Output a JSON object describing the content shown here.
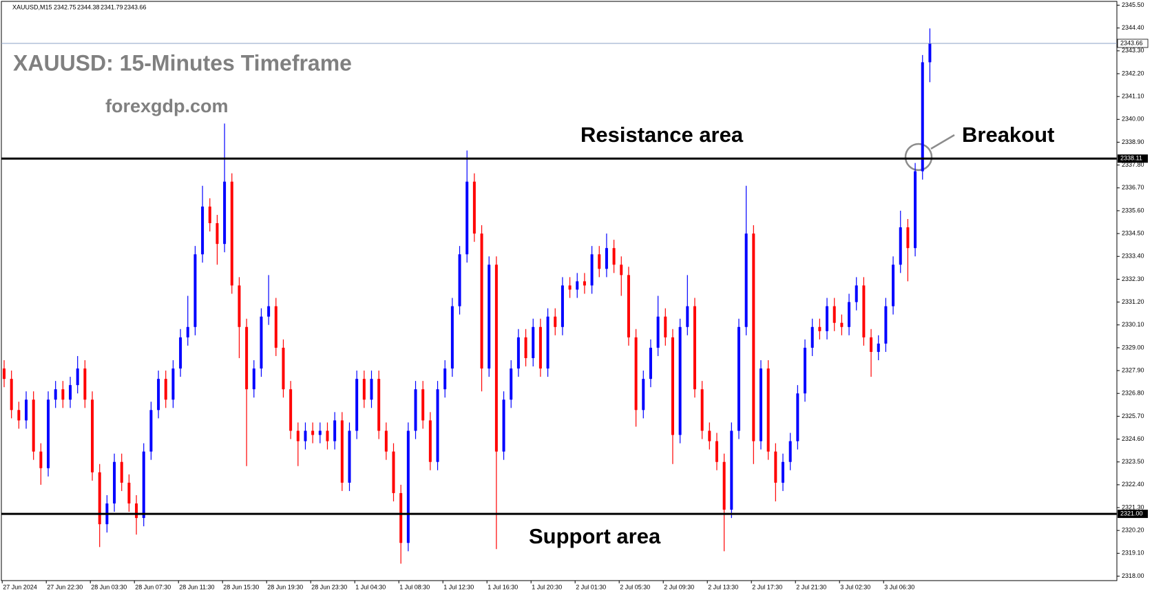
{
  "chart_data": {
    "type": "candlestick",
    "header": "XAUUSD,M15",
    "title": "XAUUSD: 15-Minutes Timeframe",
    "subtitle": "forexgdp.com",
    "annotations": {
      "resistance": "Resistance area",
      "breakout": "Breakout",
      "support": "Support area"
    },
    "x_tick_labels": [
      "27 Jun 2024",
      "27 Jun 22:30",
      "28 Jun 03:30",
      "28 Jun 07:30",
      "28 Jun 11:30",
      "28 Jun 15:30",
      "28 Jun 19:30",
      "28 Jun 23:30",
      "1 Jul 04:30",
      "1 Jul 08:30",
      "1 Jul 12:30",
      "1 Jul 16:30",
      "1 Jul 20:30",
      "2 Jul 01:30",
      "2 Jul 05:30",
      "2 Jul 09:30",
      "2 Jul 13:30",
      "2 Jul 17:30",
      "2 Jul 21:30",
      "3 Jul 02:30",
      "3 Jul 06:30"
    ],
    "open": [
      2328,
      2327.5,
      2326,
      2325.5,
      2326.5,
      2324,
      2323.2,
      2326.5,
      2327,
      2326.5,
      2327.2,
      2328,
      2326.5,
      2323,
      2320.5,
      2321.5,
      2323.5,
      2322.5,
      2321.5,
      2320.8,
      2324,
      2326,
      2327.5,
      2326.5,
      2328,
      2329.5,
      2330,
      2333.5,
      2335.8,
      2335,
      2334,
      2337,
      2332,
      2330,
      2327,
      2328,
      2330.5,
      2331,
      2329,
      2327,
      2325,
      2324.5,
      2325,
      2324.8,
      2325,
      2324.5,
      2325.5,
      2322.5,
      2325,
      2327.5,
      2326.5,
      2327.5,
      2325,
      2324,
      2322,
      2319.6,
      2325,
      2327,
      2325.5,
      2323.5,
      2327,
      2328,
      2331,
      2333.5,
      2337,
      2334.5,
      2328,
      2333,
      2324,
      2326.5,
      2328,
      2329.5,
      2328.5,
      2330,
      2328,
      2330.5,
      2330,
      2332,
      2331.8,
      2332.2,
      2332,
      2333.5,
      2332.8,
      2333.8,
      2333,
      2332.5,
      2329.5,
      2326,
      2327.5,
      2329,
      2330.5,
      2329.5,
      2324.8,
      2330,
      2331,
      2327,
      2325,
      2324.5,
      2323.5,
      2321.2,
      2325,
      2330,
      2334.5,
      2324.5,
      2328,
      2324,
      2322.5,
      2323.5,
      2324.5,
      2326.8,
      2329,
      2330,
      2329.8,
      2331,
      2330.2,
      2330,
      2331.2,
      2332,
      2329.5,
      2328.8,
      2329.2,
      2331,
      2333,
      2334.8,
      2333.8,
      2337.5,
      2342.75
    ],
    "high": [
      2328.4,
      2327.9,
      2326.4,
      2326.9,
      2326.9,
      2324.4,
      2326.9,
      2327.4,
      2327.4,
      2327.6,
      2328.6,
      2328.4,
      2326.9,
      2323.4,
      2321.9,
      2323.9,
      2323.9,
      2322.9,
      2321.9,
      2324.4,
      2326.4,
      2327.9,
      2327.9,
      2328.4,
      2329.9,
      2331.5,
      2333.9,
      2336.8,
      2336.2,
      2335.4,
      2339.8,
      2337.4,
      2332.4,
      2330.4,
      2328.4,
      2330.9,
      2332.5,
      2331.4,
      2329.4,
      2327.4,
      2325.4,
      2325.4,
      2325.4,
      2325.4,
      2325.4,
      2325.9,
      2325.9,
      2325.4,
      2327.9,
      2327.9,
      2327.9,
      2327.9,
      2325.4,
      2324.4,
      2322.4,
      2325.4,
      2327.4,
      2327.4,
      2325.9,
      2327.4,
      2328.4,
      2331.4,
      2333.9,
      2338.5,
      2337.4,
      2334.9,
      2333.4,
      2333.4,
      2326.9,
      2328.4,
      2329.9,
      2329.9,
      2330.4,
      2330.4,
      2330.9,
      2330.9,
      2332.4,
      2332.4,
      2332.6,
      2332.6,
      2333.9,
      2333.9,
      2334.5,
      2334.2,
      2333.4,
      2332.9,
      2329.9,
      2327.9,
      2329.4,
      2331.5,
      2330.9,
      2329.9,
      2330.4,
      2332.5,
      2331.4,
      2327.4,
      2325.4,
      2324.9,
      2323.9,
      2325.4,
      2330.4,
      2336.8,
      2334.9,
      2328.4,
      2328.4,
      2324.4,
      2323.9,
      2324.9,
      2327.2,
      2329.4,
      2330.4,
      2330.4,
      2331.4,
      2331.4,
      2330.6,
      2331.6,
      2332.4,
      2332.4,
      2329.9,
      2329.6,
      2331.4,
      2333.4,
      2335.6,
      2335.2,
      2337.9,
      2343.1,
      2344.38
    ],
    "low": [
      2327.1,
      2325.6,
      2325.1,
      2325.1,
      2323.6,
      2322.4,
      2322.8,
      2326.1,
      2326.1,
      2326.1,
      2326.8,
      2326.1,
      2322.6,
      2319.4,
      2320.1,
      2321.1,
      2322.1,
      2321.1,
      2320.0,
      2320.4,
      2323.6,
      2325.6,
      2326.1,
      2326.1,
      2327.6,
      2329.1,
      2329.6,
      2333.1,
      2334.6,
      2333.0,
      2333.6,
      2331.6,
      2328.5,
      2323.3,
      2326.6,
      2327.6,
      2330.1,
      2328.6,
      2326.6,
      2324.6,
      2323.3,
      2324.1,
      2324.4,
      2324.4,
      2324.1,
      2324.1,
      2322.1,
      2322.1,
      2324.6,
      2326.1,
      2326.1,
      2324.6,
      2323.6,
      2321.6,
      2318.6,
      2319.2,
      2324.6,
      2325.1,
      2323.1,
      2323.1,
      2326.6,
      2327.6,
      2330.6,
      2333.1,
      2334.1,
      2326.9,
      2327.6,
      2319.3,
      2323.6,
      2326.1,
      2327.6,
      2328.1,
      2328.1,
      2327.6,
      2327.6,
      2329.6,
      2329.6,
      2331.4,
      2331.4,
      2331.6,
      2331.6,
      2332.4,
      2332.4,
      2332.6,
      2331.5,
      2329.1,
      2325.2,
      2325.6,
      2327.1,
      2328.6,
      2329.1,
      2323.4,
      2324.4,
      2329.6,
      2326.6,
      2324.6,
      2324.1,
      2323.1,
      2319.2,
      2320.8,
      2324.6,
      2329.6,
      2323.4,
      2324.1,
      2323.6,
      2321.6,
      2322.1,
      2323.1,
      2324.1,
      2326.4,
      2328.6,
      2329.4,
      2329.4,
      2329.8,
      2329.6,
      2329.6,
      2330.8,
      2329.1,
      2327.6,
      2328.4,
      2328.8,
      2330.6,
      2332.6,
      2332.2,
      2333.4,
      2337.1,
      2341.79
    ],
    "close": [
      2327.5,
      2326,
      2325.5,
      2326.5,
      2324,
      2323.2,
      2326.5,
      2327,
      2326.5,
      2327.2,
      2328,
      2326.5,
      2323,
      2320.5,
      2321.5,
      2323.5,
      2322.5,
      2321.5,
      2320.8,
      2324,
      2326,
      2327.5,
      2326.5,
      2328,
      2329.5,
      2330,
      2333.5,
      2335.8,
      2335,
      2334,
      2337,
      2332,
      2330,
      2327,
      2328,
      2330.5,
      2331,
      2329,
      2327,
      2325,
      2324.5,
      2325,
      2324.8,
      2325,
      2324.5,
      2325.5,
      2322.5,
      2325,
      2327.5,
      2326.5,
      2327.5,
      2325,
      2324,
      2322,
      2319.6,
      2325,
      2327,
      2325.5,
      2323.5,
      2327,
      2328,
      2331,
      2333.5,
      2337,
      2334.5,
      2328,
      2333,
      2324,
      2326.5,
      2328,
      2329.5,
      2328.5,
      2330,
      2328,
      2330.5,
      2330,
      2332,
      2331.8,
      2332.2,
      2332,
      2333.5,
      2332.8,
      2333.8,
      2333,
      2332.5,
      2329.5,
      2326,
      2327.5,
      2329,
      2330.5,
      2329.5,
      2324.8,
      2330,
      2331,
      2327,
      2325,
      2324.5,
      2323.5,
      2321.2,
      2325,
      2330,
      2334.5,
      2324.5,
      2328,
      2324,
      2322.5,
      2323.5,
      2324.5,
      2326.8,
      2329,
      2330,
      2329.8,
      2331,
      2330.2,
      2330,
      2331.2,
      2332,
      2329.5,
      2328.8,
      2329.2,
      2331,
      2333,
      2334.8,
      2333.8,
      2337.5,
      2342.75,
      2343.66
    ],
    "up_color": "#0000ff",
    "down_color": "#ff0000",
    "ylim": [
      2318,
      2345.5
    ],
    "yticks": [
      {
        "value": 2345.5,
        "label": "2345.50"
      },
      {
        "value": 2344.4,
        "label": "2344.40"
      },
      {
        "value": 2343.3,
        "label": "2343.30"
      },
      {
        "value": 2342.2,
        "label": "2342.20"
      },
      {
        "value": 2341.1,
        "label": "2341.10"
      },
      {
        "value": 2340,
        "label": "2340.00"
      },
      {
        "value": 2338.9,
        "label": "2338.90"
      },
      {
        "value": 2337.8,
        "label": "2337.80"
      },
      {
        "value": 2336.7,
        "label": "2336.70"
      },
      {
        "value": 2335.6,
        "label": "2335.60"
      },
      {
        "value": 2334.5,
        "label": "2334.50"
      },
      {
        "value": 2333.4,
        "label": "2333.40"
      },
      {
        "value": 2332.3,
        "label": "2332.30"
      },
      {
        "value": 2331.2,
        "label": "2331.20"
      },
      {
        "value": 2330.1,
        "label": "2330.10"
      },
      {
        "value": 2329,
        "label": "2329.00"
      },
      {
        "value": 2327.9,
        "label": "2327.90"
      },
      {
        "value": 2326.8,
        "label": "2326.80"
      },
      {
        "value": 2325.7,
        "label": "2325.70"
      },
      {
        "value": 2324.6,
        "label": "2324.60"
      },
      {
        "value": 2323.5,
        "label": "2323.50"
      },
      {
        "value": 2322.4,
        "label": "2322.40"
      },
      {
        "value": 2321.3,
        "label": "2321.30"
      },
      {
        "value": 2320.2,
        "label": "2320.20"
      },
      {
        "value": 2319.1,
        "label": "2319.10"
      },
      {
        "value": 2318,
        "label": "2318.00"
      }
    ],
    "levels": [
      2338.11,
      {
        "value": 2321,
        "label": "2321.00"
      }
    ]
  }
}
